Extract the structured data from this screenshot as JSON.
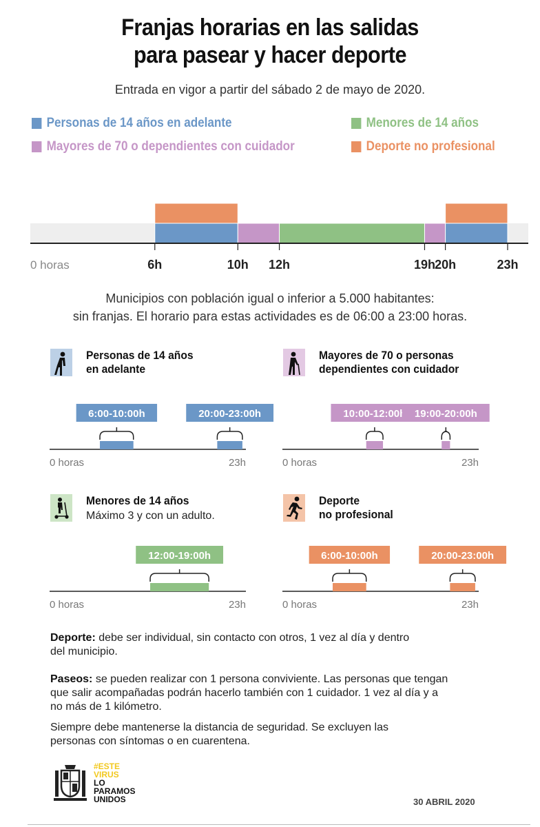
{
  "title_line1": "Franjas horarias en las salidas",
  "title_line2": "para pasear y hacer deporte",
  "subtitle": "Entrada en vigor a partir del sábado 2 de mayo de 2020.",
  "colors": {
    "blue": "#6b97c7",
    "green": "#8fc184",
    "purple": "#c596c7",
    "orange": "#ea9163",
    "track": "#eeeeee"
  },
  "legend": [
    {
      "label": "Personas de 14 años en adelante",
      "color": "#6b97c7"
    },
    {
      "label": "Menores de 14 años",
      "color": "#8fc184"
    },
    {
      "label": "Mayores de 70 o dependientes con cuidador",
      "color": "#c596c7"
    },
    {
      "label": "Deporte no profesional",
      "color": "#ea9163"
    }
  ],
  "municipios_line1": "Municipios con población igual o inferior a 5.000 habitantes:",
  "municipios_line2": "sin franjas. El horario para estas actividades es de 06:00 a 23:00 horas.",
  "chart_data": [
    {
      "type": "timeline",
      "xlim": [
        0,
        24
      ],
      "x_ticks": [
        6,
        10,
        12,
        19,
        20,
        23
      ],
      "x_tick_labels": [
        "6h",
        "10h",
        "12h",
        "19h",
        "20h",
        "23h"
      ],
      "origin_label": "0 horas",
      "segments": [
        {
          "series": "Personas de 14 años en adelante",
          "row": 0,
          "start": 6,
          "end": 10,
          "color": "#6b97c7"
        },
        {
          "series": "Mayores de 70 o dependientes con cuidador",
          "row": 0,
          "start": 10,
          "end": 12,
          "color": "#c596c7"
        },
        {
          "series": "Menores de 14 años",
          "row": 0,
          "start": 12,
          "end": 19,
          "color": "#8fc184"
        },
        {
          "series": "Mayores de 70 o dependientes con cuidador",
          "row": 0,
          "start": 19,
          "end": 20,
          "color": "#c596c7"
        },
        {
          "series": "Personas de 14 años en adelante",
          "row": 0,
          "start": 20,
          "end": 23,
          "color": "#6b97c7"
        },
        {
          "series": "Deporte no profesional",
          "row": 1,
          "start": 6,
          "end": 10,
          "color": "#ea9163"
        },
        {
          "series": "Deporte no profesional",
          "row": 1,
          "start": 20,
          "end": 23,
          "color": "#ea9163"
        }
      ]
    },
    {
      "type": "timeline",
      "title_line1": "Personas de 14 años",
      "title_line2": "en adelante",
      "icon": "walking-person-icon",
      "color": "#6b97c7",
      "icon_bg": "#bcd0e6",
      "xlim": [
        0,
        24
      ],
      "origin_label": "0 horas",
      "end_label": "23h",
      "ranges": [
        {
          "start": 6,
          "end": 10,
          "label": "6:00-10:00h"
        },
        {
          "start": 20,
          "end": 23,
          "label": "20:00-23:00h"
        }
      ]
    },
    {
      "type": "timeline",
      "title_line1": "Mayores de 70 o personas",
      "title_line2": "dependientes con cuidador",
      "icon": "elderly-person-with-cane-icon",
      "color": "#c596c7",
      "icon_bg": "#e3c9e3",
      "xlim": [
        0,
        24
      ],
      "origin_label": "0 horas",
      "end_label": "23h",
      "ranges": [
        {
          "start": 10,
          "end": 12,
          "label": "10:00-12:00h"
        },
        {
          "start": 19,
          "end": 20,
          "label": "19:00-20:00h"
        }
      ]
    },
    {
      "type": "timeline",
      "title_line1": "Menores de 14 años",
      "subtitle": "Máximo 3 y con un adulto.",
      "icon": "child-on-scooter-icon",
      "color": "#8fc184",
      "icon_bg": "#cde5c6",
      "xlim": [
        0,
        24
      ],
      "origin_label": "0 horas",
      "end_label": "23h",
      "ranges": [
        {
          "start": 12,
          "end": 19,
          "label": "12:00-19:00h"
        }
      ]
    },
    {
      "type": "timeline",
      "title_line1": "Deporte",
      "title_line2": "no profesional",
      "icon": "running-person-icon",
      "color": "#ea9163",
      "icon_bg": "#f4c4a8",
      "xlim": [
        0,
        24
      ],
      "origin_label": "0 horas",
      "end_label": "23h",
      "ranges": [
        {
          "start": 6,
          "end": 10,
          "label": "6:00-10:00h"
        },
        {
          "start": 20,
          "end": 23,
          "label": "20:00-23:00h"
        }
      ]
    }
  ],
  "notes": {
    "deporte_label": "Deporte:",
    "deporte_l1": " debe ser individual, sin contacto con otros, 1 vez al día y dentro",
    "deporte_l2": "del municipio.",
    "paseos_label": "Paseos:",
    "paseos_l1": " se pueden realizar con 1 persona conviviente. Las personas que tengan",
    "paseos_l2": "que salir acompañadas podrán hacerlo también con 1 cuidador. 1 vez al día y a",
    "paseos_l3": "no más de 1 kilómetro.",
    "siempre_l1": "Siempre debe mantenerse la distancia de seguridad. Se excluyen las",
    "siempre_l2": "personas con síntomas o en cuarentena."
  },
  "footer": {
    "slogan_1": "#ESTE",
    "slogan_2": "VIRUS",
    "slogan_3": "LO",
    "slogan_4": "PARAMOS",
    "slogan_5": "UNIDOS",
    "slogan_accent": "#f2c81e",
    "date": "30 ABRIL 2020",
    "logo_icon": "coat-of-arms-icon"
  }
}
